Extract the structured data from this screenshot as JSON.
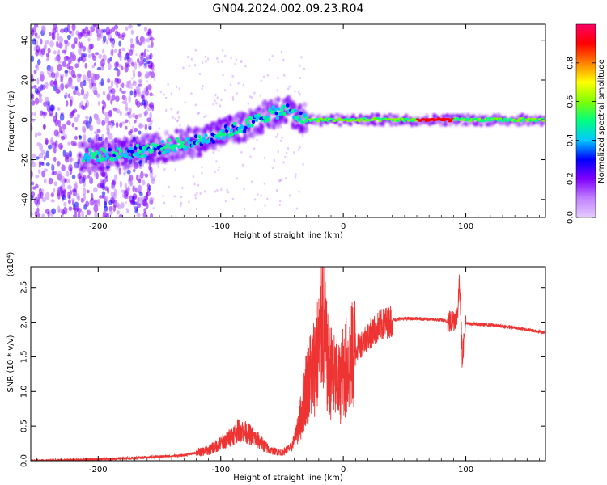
{
  "title": "GN04.2024.002.09.23.R04",
  "chart_data": [
    {
      "type": "heatmap",
      "xlabel": "Height of straight line (km)",
      "ylabel": "Frequency (Hz)",
      "xlim": [
        -255,
        165
      ],
      "ylim": [
        -49,
        48
      ],
      "xticks": [
        -200,
        -100,
        0,
        100
      ],
      "yticks": [
        -40,
        -20,
        0,
        20,
        40
      ],
      "colorbar": {
        "label": "Normalized spectral amplitude",
        "range": [
          0.0,
          1.0
        ],
        "ticks": [
          "0.0",
          "0.2",
          "0.4",
          "0.6",
          "0.8"
        ],
        "colors": [
          "#e6ccff",
          "#c080ff",
          "#8000ff",
          "#0000ff",
          "#00c8ff",
          "#00ff80",
          "#80ff00",
          "#ffff00",
          "#ff8000",
          "#ff0000",
          "#ff0066"
        ]
      },
      "ridge": {
        "x": [
          -210,
          -180,
          -150,
          -120,
          -100,
          -80,
          -60,
          -45,
          -35,
          -25,
          0,
          50,
          100,
          160
        ],
        "freq": [
          -18,
          -17,
          -14,
          -11,
          -7,
          -3,
          3,
          5,
          1,
          0,
          0,
          0,
          0,
          0
        ]
      }
    },
    {
      "type": "line",
      "xlabel": "Height of straight line (km)",
      "ylabel": "SNR (10 * v/v)",
      "y_multiplier": "(x10⁴)",
      "xlim": [
        -255,
        165
      ],
      "ylim": [
        0,
        2.8
      ],
      "xticks": [
        -200,
        -100,
        0,
        100
      ],
      "yticks": [
        "0.0",
        "0.5",
        "1.0",
        "1.5",
        "2.0",
        "2.5"
      ],
      "color": "#ee3333",
      "series": [
        {
          "x": [
            -255,
            -200,
            -160,
            -130,
            -110,
            -95,
            -85,
            -78,
            -70,
            -60,
            -50,
            -42,
            -35,
            -30,
            -25,
            -20,
            -17,
            -13,
            -8,
            -3,
            0,
            5,
            10,
            20,
            30,
            40,
            50,
            60,
            70,
            80,
            88,
            93,
            95,
            97,
            100,
            120,
            140,
            165
          ],
          "y": [
            0.0,
            0.02,
            0.05,
            0.08,
            0.15,
            0.3,
            0.45,
            0.4,
            0.3,
            0.15,
            0.12,
            0.2,
            0.6,
            1.1,
            1.3,
            1.6,
            2.1,
            1.4,
            1.2,
            1.1,
            1.3,
            1.4,
            1.6,
            1.8,
            1.95,
            2.03,
            2.05,
            2.05,
            2.04,
            2.03,
            2.0,
            2.1,
            2.6,
            1.5,
            1.98,
            1.96,
            1.92,
            1.85
          ]
        }
      ]
    }
  ]
}
